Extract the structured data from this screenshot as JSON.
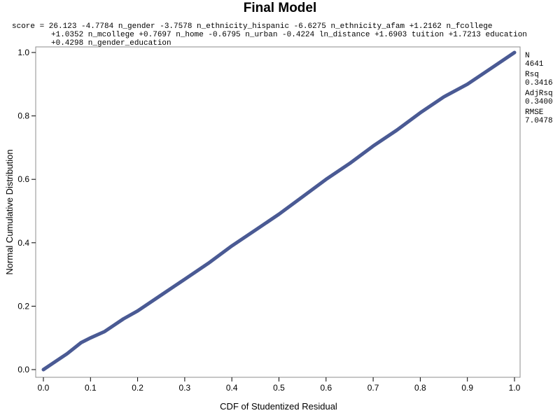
{
  "chart_data": {
    "type": "line",
    "title": "Final Model",
    "equation": {
      "line1": "score = 26.123 -4.7784 n_gender -3.7578 n_ethnicity_hispanic -6.6275 n_ethnicity_afam +1.2162 n_fcollege",
      "line2": "+1.0352 n_mcollege +0.7697 n_home -0.6795 n_urban -0.4224 ln_distance +1.6903 tuition +1.7213 education",
      "line3": "+0.4298 n_gender_education"
    },
    "xlabel": "CDF of Studentized Residual",
    "ylabel": "Normal Cumulative Distribution",
    "xlim": [
      0,
      1
    ],
    "ylim": [
      0,
      1
    ],
    "xticks": [
      "0.0",
      "0.1",
      "0.2",
      "0.3",
      "0.4",
      "0.5",
      "0.6",
      "0.7",
      "0.8",
      "0.9",
      "1.0"
    ],
    "yticks": [
      "0.0",
      "0.2",
      "0.4",
      "0.6",
      "0.8",
      "1.0"
    ],
    "grid": false,
    "series": [
      {
        "color": "#4a5a94",
        "x": [
          0.0,
          0.02,
          0.05,
          0.08,
          0.1,
          0.13,
          0.15,
          0.17,
          0.2,
          0.25,
          0.3,
          0.35,
          0.4,
          0.45,
          0.5,
          0.55,
          0.6,
          0.65,
          0.7,
          0.75,
          0.8,
          0.85,
          0.9,
          0.95,
          1.0
        ],
        "y": [
          0.0,
          0.02,
          0.05,
          0.085,
          0.1,
          0.12,
          0.14,
          0.16,
          0.185,
          0.235,
          0.285,
          0.335,
          0.39,
          0.44,
          0.49,
          0.545,
          0.6,
          0.65,
          0.705,
          0.755,
          0.81,
          0.86,
          0.9,
          0.95,
          1.0
        ]
      }
    ],
    "stats": [
      {
        "label": "N",
        "value": "4641"
      },
      {
        "label": "Rsq",
        "value": "0.3416"
      },
      {
        "label": "AdjRsq",
        "value": "0.3400"
      },
      {
        "label": "RMSE",
        "value": "7.0478"
      }
    ]
  }
}
